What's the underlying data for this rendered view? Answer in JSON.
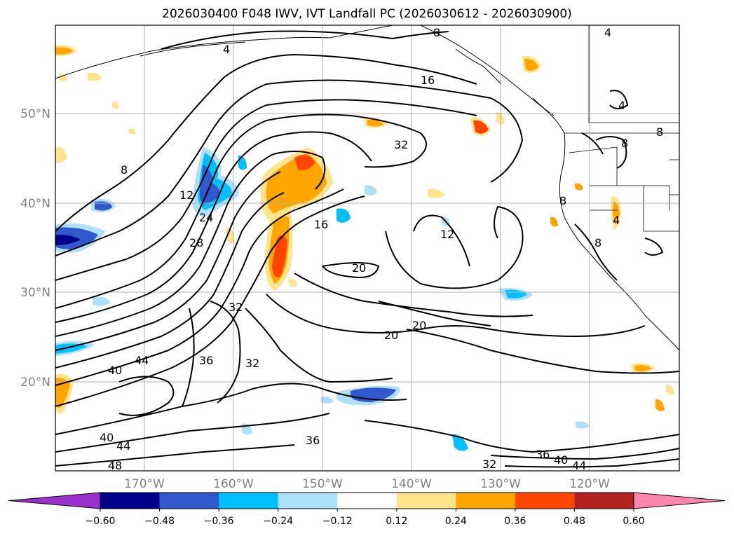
{
  "title": "2026030400 F048 IWV, IVT Landfall PC (2026030612 - 2026030900)",
  "map": {
    "lon_labels": [
      "170°W",
      "160°W",
      "150°W",
      "140°W",
      "130°W",
      "120°W"
    ],
    "lat_labels": [
      "50°N",
      "40°N",
      "30°N",
      "20°N"
    ],
    "contour_labels": [
      "4",
      "4",
      "4",
      "4",
      "8",
      "8",
      "8",
      "8",
      "8",
      "8",
      "12",
      "12",
      "16",
      "16",
      "20",
      "20",
      "20",
      "24",
      "28",
      "32",
      "32",
      "32",
      "32",
      "36",
      "36",
      "36",
      "40",
      "40",
      "40",
      "44",
      "44",
      "44",
      "48"
    ]
  },
  "colorbar": {
    "ticks": [
      "−0.60",
      "−0.48",
      "−0.36",
      "−0.24",
      "−0.12",
      "0.12",
      "0.24",
      "0.36",
      "0.48",
      "0.60"
    ],
    "colors": [
      "#9932cc",
      "#00008b",
      "#3158cd",
      "#00bfff",
      "#afe0fa",
      "#ffffff",
      "#ffe48c",
      "#ffa500",
      "#ff4500",
      "#b22222",
      "#ff86ac"
    ]
  }
}
